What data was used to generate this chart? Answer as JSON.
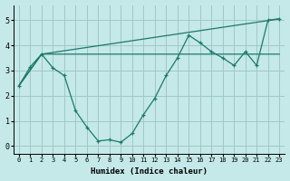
{
  "xlabel": "Humidex (Indice chaleur)",
  "background_color": "#c5e8e8",
  "grid_color": "#a0c8c8",
  "line_color": "#1a7a6a",
  "xlim": [
    -0.5,
    23.5
  ],
  "ylim": [
    -0.3,
    5.6
  ],
  "xticks": [
    0,
    1,
    2,
    3,
    4,
    5,
    6,
    7,
    8,
    9,
    10,
    11,
    12,
    13,
    14,
    15,
    16,
    17,
    18,
    19,
    20,
    21,
    22,
    23
  ],
  "yticks": [
    0,
    1,
    2,
    3,
    4,
    5
  ],
  "line1_x": [
    0,
    1,
    2,
    3,
    4,
    5,
    6,
    7,
    8,
    9,
    10,
    11,
    12,
    13,
    14,
    15,
    16,
    17,
    18,
    19,
    20,
    21,
    22,
    23
  ],
  "line1_y": [
    2.4,
    3.15,
    3.65,
    3.1,
    2.8,
    1.4,
    0.75,
    0.2,
    0.25,
    0.15,
    0.5,
    1.25,
    1.9,
    2.8,
    3.5,
    4.4,
    4.1,
    3.75,
    3.5,
    3.2,
    3.75,
    3.2,
    5.0,
    5.05
  ],
  "line2_x": [
    0,
    2,
    23
  ],
  "line2_y": [
    2.4,
    3.65,
    5.05
  ],
  "line3_x": [
    0,
    2,
    23
  ],
  "line3_y": [
    2.4,
    3.65,
    3.65
  ]
}
